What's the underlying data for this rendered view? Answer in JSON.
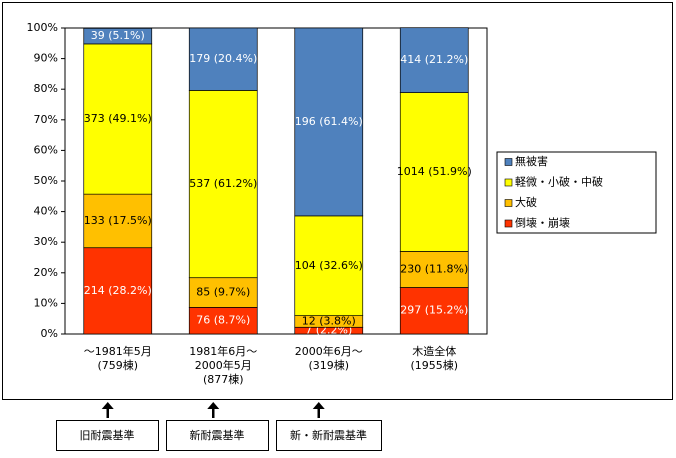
{
  "chart_data": {
    "type": "stacked_bar_100",
    "categories": [
      [
        "～1981年5月"
      ],
      [
        "1981年6月～",
        "2000年5月"
      ],
      [
        "2000年6月～"
      ],
      [
        "木造全体"
      ]
    ],
    "category_notes": [
      "(759棟)",
      "(877棟)",
      "(319棟)",
      "(1955棟)"
    ],
    "series": [
      {
        "name": "倒壊・崩壊",
        "color": "#ff3300",
        "label_color": "#ffffff",
        "values": [
          28.2,
          8.7,
          2.2,
          15.2
        ],
        "value_labels": [
          "214 (28.2%)",
          "76 (8.7%)",
          "7 (2.2%)",
          "297 (15.2%)"
        ]
      },
      {
        "name": "大破",
        "color": "#ffc000",
        "label_color": "#000000",
        "values": [
          17.5,
          9.7,
          3.8,
          11.8
        ],
        "value_labels": [
          "133 (17.5%)",
          "85 (9.7%)",
          "12 (3.8%)",
          "230 (11.8%)"
        ]
      },
      {
        "name": "軽微・小破・中破",
        "color": "#ffff00",
        "label_color": "#000000",
        "values": [
          49.1,
          61.2,
          32.6,
          51.9
        ],
        "value_labels": [
          "373 (49.1%)",
          "537 (61.2%)",
          "104 (32.6%)",
          "1014 (51.9%)"
        ]
      },
      {
        "name": "無被害",
        "color": "#4f81bd",
        "label_color": "#ffffff",
        "values": [
          5.1,
          20.4,
          61.4,
          21.2
        ],
        "value_labels": [
          "39 (5.1%)",
          "179 (20.4%)",
          "196 (61.4%)",
          "414 (21.2%)"
        ]
      }
    ],
    "ylim": [
      0,
      100
    ],
    "yticks": [
      {
        "value": 0,
        "label": "0%"
      },
      {
        "value": 10,
        "label": "10%"
      },
      {
        "value": 20,
        "label": "20%"
      },
      {
        "value": 30,
        "label": "30%"
      },
      {
        "value": 40,
        "label": "40%"
      },
      {
        "value": 50,
        "label": "50%"
      },
      {
        "value": 60,
        "label": "60%"
      },
      {
        "value": 70,
        "label": "70%"
      },
      {
        "value": 80,
        "label": "80%"
      },
      {
        "value": 90,
        "label": "90%"
      },
      {
        "value": 100,
        "label": "100%"
      }
    ],
    "legend": "right",
    "annotations": [
      "旧耐震基準",
      "新耐震基準",
      "新・新耐震基準"
    ]
  }
}
